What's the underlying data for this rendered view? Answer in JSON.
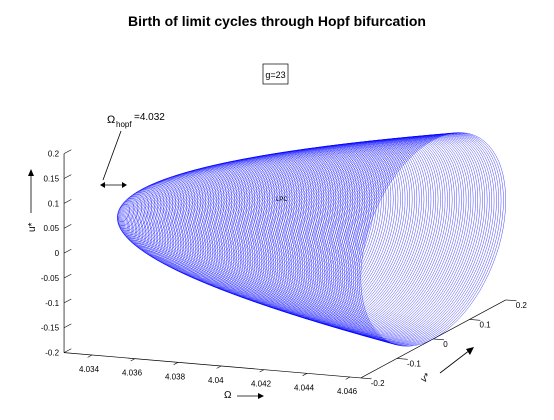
{
  "chart_data": {
    "type": "surface3d",
    "title": "Birth of limit cycles through Hopf bifurcation",
    "legend_box": "g=23",
    "annotation": {
      "omega_symbol": "Ω",
      "subscript": "hopf",
      "value_text": "=4.032"
    },
    "surface_label": "LPC",
    "xlabel": "Ω",
    "ylabel": "v*",
    "zlabel": "u*",
    "x_ticks": [
      "4.034",
      "4.036",
      "4.038",
      "4.04",
      "4.042",
      "4.044",
      "4.046"
    ],
    "y_ticks": [
      "-0.2",
      "-0.1",
      "0",
      "0.1",
      "0.2"
    ],
    "z_ticks": [
      "0.2",
      "0.15",
      "0.1",
      "0.05",
      "0",
      "-0.05",
      "-0.1",
      "-0.15",
      "-0.2"
    ],
    "x_range": [
      4.032,
      4.0465
    ],
    "y_range": [
      -0.2,
      0.2
    ],
    "z_range": [
      -0.2,
      0.2
    ],
    "hopf_point": 4.032,
    "surface_color": "#0000ff",
    "grid": false
  }
}
